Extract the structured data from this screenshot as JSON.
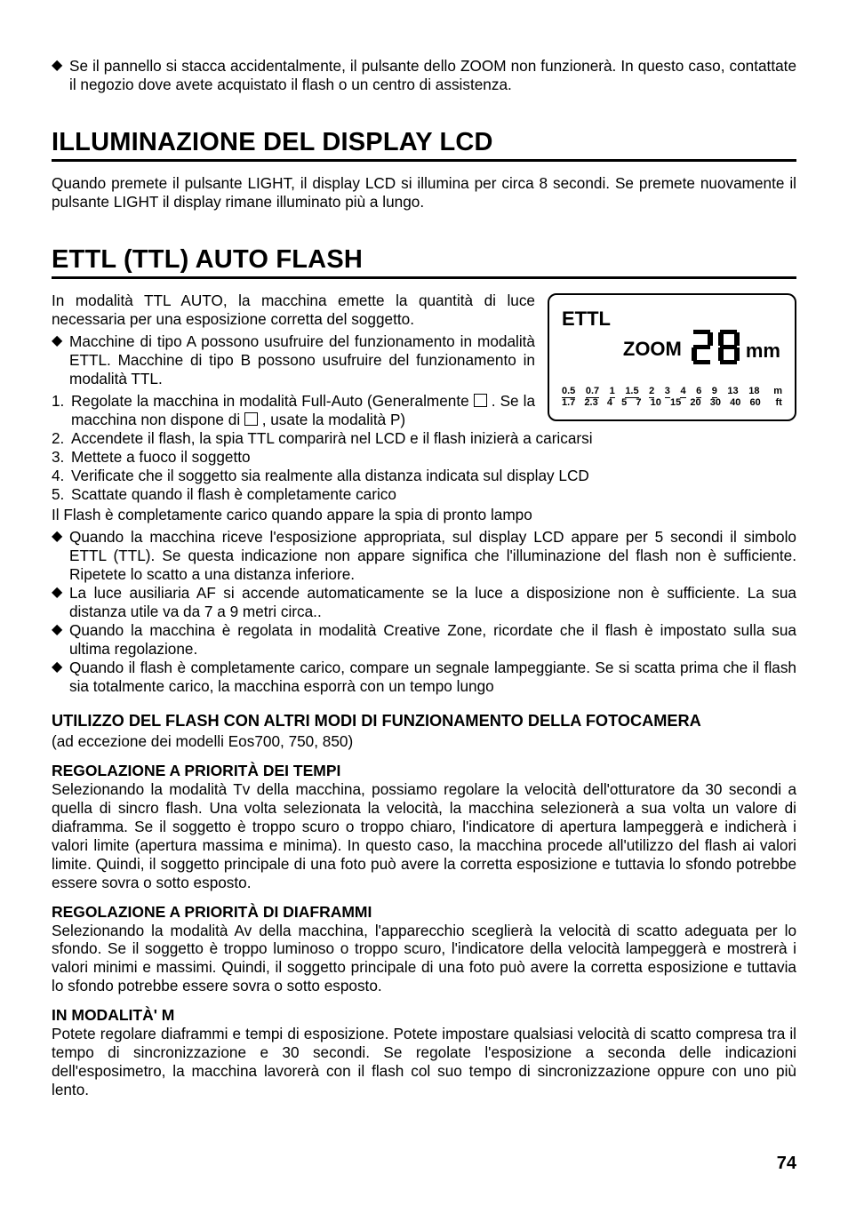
{
  "intro_bullet": "Se il pannello si stacca accidentalmente, il pulsante dello ZOOM non funzionerà. In questo caso, contattate il negozio dove avete acquistato il flash o un centro di assistenza.",
  "sec1_title": "ILLUMINAZIONE DEL DISPLAY LCD",
  "sec1_para": "Quando premete il pulsante LIGHT, il display LCD si illumina per circa 8 secondi. Se premete nuovamente il pulsante LIGHT il display rimane illuminato più a lungo.",
  "sec2_title": "ETTL (TTL) AUTO FLASH",
  "sec2_para": "In modalità TTL AUTO, la macchina emette la quantità di luce necessaria per una esposizione corretta del soggetto.",
  "sec2_bullet1": "Macchine di tipo A possono usufruire del funzionamento in modalità ETTL. Macchine di tipo B possono usufruire del funzionamento in modalità TTL.",
  "step1a": "Regolate la macchina in modalità Full-Auto (Generalmente ",
  "step1b": ". Se la macchina non dispone di ",
  "step1c": ", usate la modalità P)",
  "step2": "Accendete il flash, la spia TTL comparirà nel LCD e il flash inizierà a caricarsi",
  "step3": "Mettete a fuoco il soggetto",
  "step4": "Verificate che il soggetto sia realmente alla distanza indicata sul display LCD",
  "step5": "Scattate quando il flash è completamente carico",
  "post_steps": "Il Flash è completamente carico quando appare la spia di pronto lampo",
  "note1": "Quando la macchina riceve l'esposizione appropriata, sul display LCD appare per 5 secondi il simbolo ETTL (TTL). Se questa indicazione non appare significa che l'illuminazione del flash non è sufficiente. Ripetete lo scatto a una distanza inferiore.",
  "note2": "La luce ausiliaria AF si accende automaticamente se la luce a disposizione non è sufficiente. La sua distanza utile va da 7 a 9 metri circa..",
  "note3": "Quando la macchina è regolata in modalità Creative Zone, ricordate che il flash è impostato sulla sua ultima regolazione.",
  "note4": "Quando il flash è completamente carico, compare un segnale lampeggiante. Se si scatta prima che il flash sia totalmente carico, la macchina esporrà con un tempo lungo",
  "sub_big": "UTILIZZO DEL FLASH CON ALTRI MODI DI FUNZIONAMENTO DELLA FOTOCAMERA",
  "sub_big_note": "(ad eccezione dei modelli Eos700, 750, 850)",
  "tv_title": "REGOLAZIONE A PRIORITÀ DEI TEMPI",
  "tv_para": "Selezionando la modalità Tv della macchina, possiamo regolare la velocità dell'otturatore da 30 secondi a quella di sincro flash. Una volta selezionata la velocità, la macchina selezionerà a sua volta un valore di diaframma. Se il soggetto è troppo scuro o troppo chiaro, l'indicatore di apertura lampeggerà e indicherà i valori limite (apertura massima e minima). In questo caso, la macchina procede all'utilizzo del flash ai valori limite. Quindi, il soggetto principale di una foto può avere la corretta esposizione e tuttavia lo sfondo potrebbe essere sovra o sotto esposto.",
  "av_title": "REGOLAZIONE A PRIORITÀ DI DIAFRAMMI",
  "av_para": "Selezionando la modalità Av della macchina, l'apparecchio sceglierà la velocità di scatto adeguata per lo sfondo. Se il soggetto è troppo luminoso o troppo scuro, l'indicatore della velocità lampeggerà e mostrerà i valori minimi e massimi. Quindi, il soggetto principale di una foto può avere la corretta esposizione e tuttavia lo sfondo potrebbe essere sovra o sotto esposto.",
  "m_title": "IN MODALITÀ' M",
  "m_para": "Potete regolare diaframmi e tempi di esposizione. Potete impostare qualsiasi velocità di scatto compresa tra il tempo di sincronizzazione e 30 secondi. Se regolate l'esposizione a seconda delle indicazioni dell'esposimetro, la macchina lavorerà con il flash col suo tempo di sincronizzazione oppure con uno più lento.",
  "lcd": {
    "ettl": "ETTL",
    "zoom_word": "ZOOM",
    "zoom_value": "28",
    "zoom_unit": "mm",
    "scale_m": [
      "0.5",
      "0.7",
      "1",
      "1.5",
      "2",
      "3",
      "4",
      "6",
      "9",
      "13",
      "18",
      "m"
    ],
    "scale_ft": [
      "1.7",
      "2.3",
      "4",
      "5",
      "7",
      "10",
      "15",
      "20",
      "30",
      "40",
      "60",
      "ft"
    ]
  },
  "page_number": "74"
}
